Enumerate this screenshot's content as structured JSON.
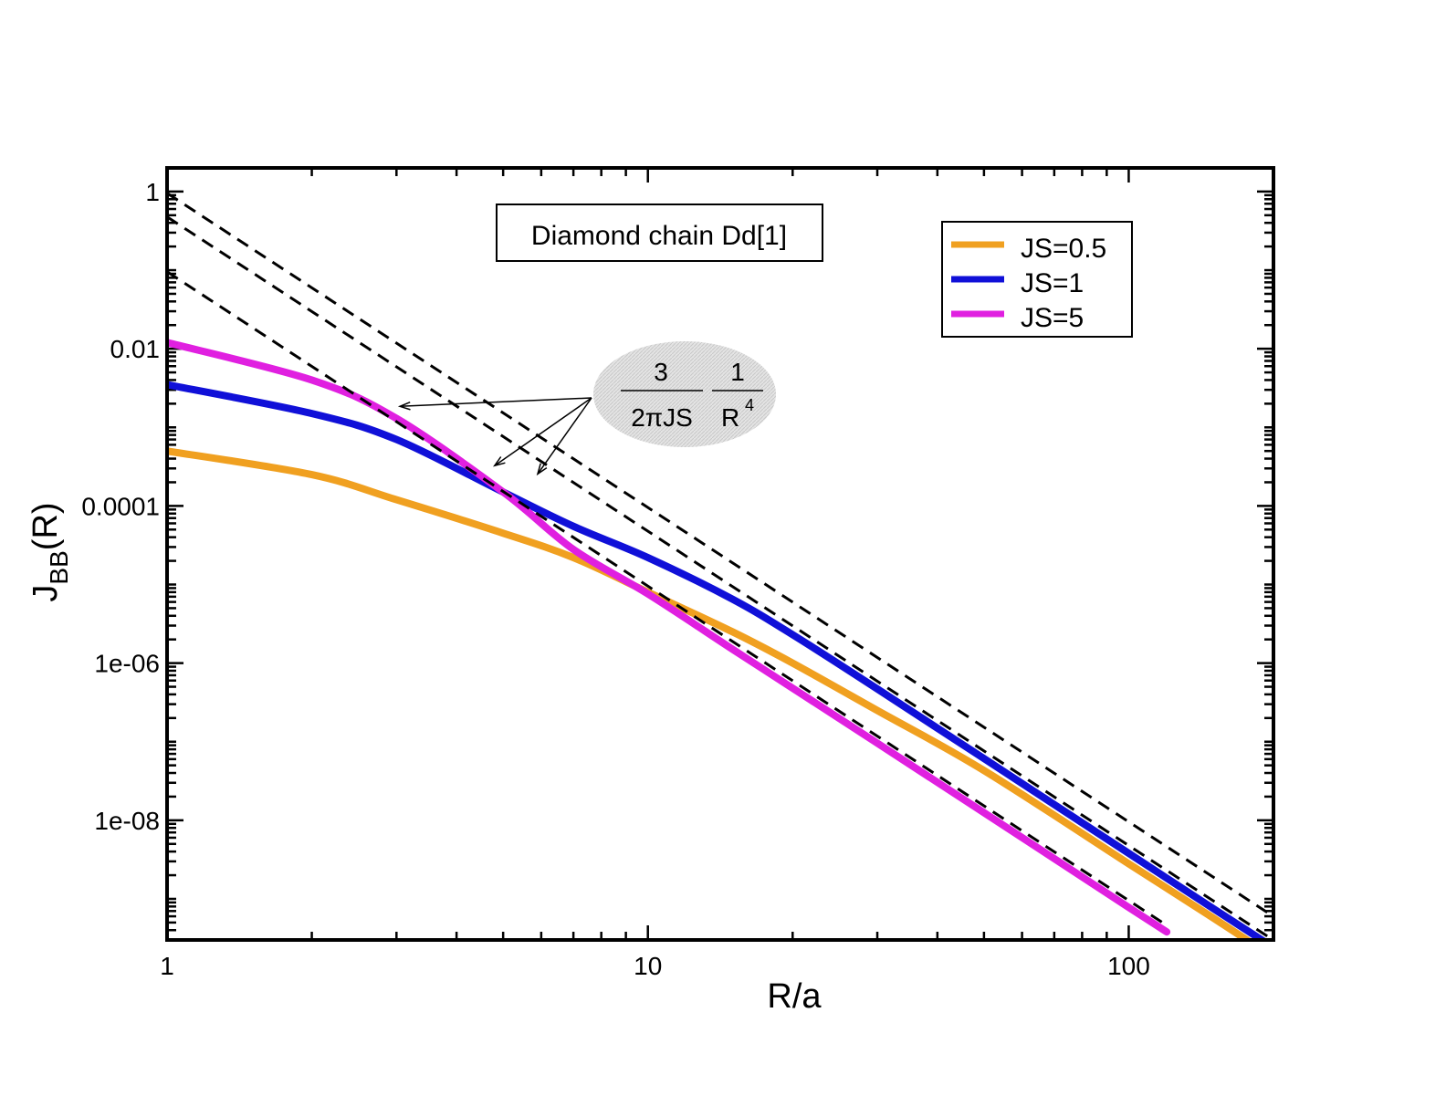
{
  "chart_data": {
    "type": "line",
    "title": "Diamond chain Dd[1]",
    "xlabel": "R/a",
    "ylabel": {
      "base": "J",
      "sub": "BB",
      "tail": "(R)"
    },
    "x_scale": "log",
    "y_scale": "log",
    "xlim": [
      1,
      200
    ],
    "ylim": [
      3e-10,
      2
    ],
    "x_ticks": [
      {
        "value": 1,
        "label": "1"
      },
      {
        "value": 10,
        "label": "10"
      },
      {
        "value": 100,
        "label": "100"
      }
    ],
    "y_ticks": [
      {
        "value": 1,
        "label": "1"
      },
      {
        "value": 0.01,
        "label": "0.01"
      },
      {
        "value": 0.0001,
        "label": "0.0001"
      },
      {
        "value": 1e-06,
        "label": "1e-06"
      },
      {
        "value": 1e-08,
        "label": "1e-08"
      }
    ],
    "legend_position": "top-right",
    "series": [
      {
        "name": "JS=0.5",
        "color": "#f0a020",
        "x": [
          1,
          2,
          3,
          5,
          7,
          10,
          15,
          20,
          30,
          50,
          100,
          150,
          200
        ],
        "y": [
          0.0005,
          0.00025,
          0.00012,
          4.5e-05,
          2.2e-05,
          8e-06,
          2.5e-06,
          1e-06,
          2.5e-07,
          4.3e-08,
          2.8e-09,
          5.7e-10,
          1.8e-10
        ]
      },
      {
        "name": "JS=1",
        "color": "#1010d8",
        "x": [
          1,
          2,
          3,
          5,
          7,
          10,
          15,
          20,
          30,
          50,
          100,
          150,
          200
        ],
        "y": [
          0.0035,
          0.0015,
          0.0007,
          0.00015,
          5.5e-05,
          2.2e-05,
          6.5e-06,
          2.3e-06,
          4.7e-07,
          6.1e-08,
          3.8e-09,
          7.5e-10,
          2.4e-10
        ]
      },
      {
        "name": "JS=5",
        "color": "#e020e0",
        "x": [
          1,
          2,
          3,
          5,
          7,
          10,
          15,
          20,
          30,
          50,
          100,
          120
        ],
        "y": [
          0.012,
          0.004,
          0.0013,
          0.00015,
          2.8e-05,
          7.6e-06,
          1.5e-06,
          4.8e-07,
          9.6e-08,
          1.25e-08,
          7.8e-10,
          3.8e-10
        ]
      }
    ],
    "asymptotes": {
      "label": "3/(2πJS) · 1/R^4",
      "style": "dashed",
      "color": "#000000",
      "lines": [
        {
          "series": "JS=0.5",
          "x": [
            1,
            200
          ],
          "y": [
            0.955,
            5.97e-10
          ]
        },
        {
          "series": "JS=1",
          "x": [
            1,
            200
          ],
          "y": [
            0.477,
            2.98e-10
          ]
        },
        {
          "series": "JS=5",
          "x": [
            1,
            120
          ],
          "y": [
            0.0955,
            4.6e-10
          ]
        }
      ]
    },
    "annotation": {
      "numerator_left": "3",
      "denominator_left": "2πJS",
      "numerator_right": "1",
      "denominator_right_base": "R",
      "denominator_right_exp": "4",
      "arrow_targets": [
        {
          "x": 3.05,
          "y": 0.00185
        },
        {
          "x": 4.8,
          "y": 0.000325
        },
        {
          "x": 5.9,
          "y": 0.000255
        }
      ]
    }
  }
}
